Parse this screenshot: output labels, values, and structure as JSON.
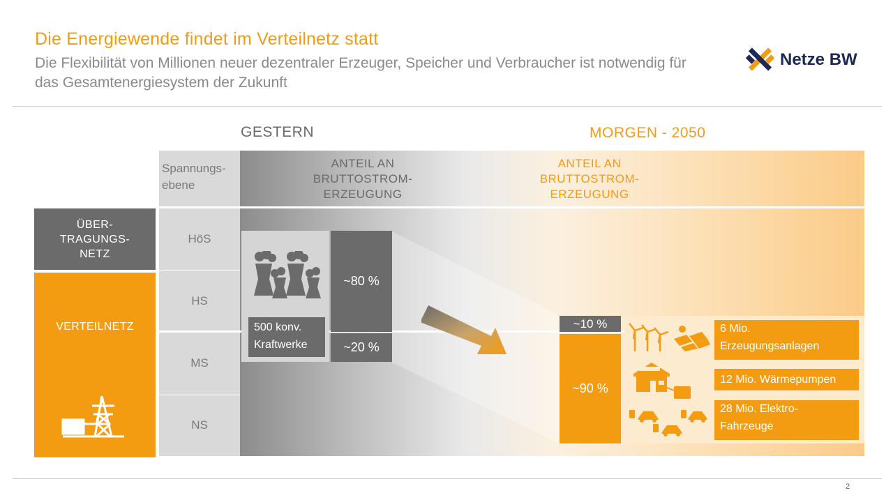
{
  "title": "Die Energiewende  findet im Verteilnetz statt",
  "subtitle": "Die Flexibilität von Millionen neuer dezentraler Erzeuger, Speicher und Verbraucher ist notwendig für das Gesamtenergiesystem der Zukunft",
  "logo": {
    "text": "Netze BW"
  },
  "page_number": "2",
  "columns": {
    "yesterday": "GESTERN",
    "tomorrow": "MORGEN - 2050"
  },
  "level_header": "Spannungs-\nebene",
  "share_header_yesterday": "ANTEIL AN\nBRUTTOSTROM-\nERZEUGUNG",
  "share_header_tomorrow": "ANTEIL AN\nBRUTTOSTROM-\nERZEUGUNG",
  "networks": {
    "transmission": "ÜBER-\nTRAGUNGS-\nNETZ",
    "distribution": "VERTEILNETZ"
  },
  "voltage_levels": [
    "HöS",
    "HS",
    "MS",
    "NS"
  ],
  "yesterday": {
    "plants_label": "500 konv.\nKraftwerke",
    "share_high": "~80 %",
    "share_low": "~20 %"
  },
  "tomorrow": {
    "share_high": "~10 %",
    "share_low": "~90 %"
  },
  "tomorrow_items": [
    "6 Mio.\nErzeugungsanlagen",
    "12 Mio. Wärmepumpen",
    "28 Mio. Elektro-\nFahrzeuge"
  ],
  "colors": {
    "accent": "#f39c12",
    "dark_gray": "#6b6b6b",
    "brand_navy": "#1e2a55"
  }
}
